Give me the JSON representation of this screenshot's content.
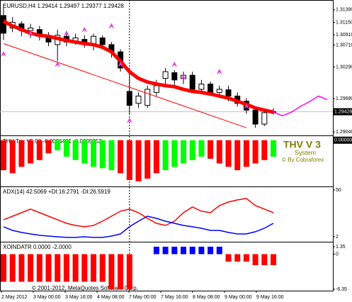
{
  "chart_data": [
    {
      "type": "candlestick",
      "title": "EURUSD,H4 1.29414 1.29497 1.29377 1.29428",
      "open": [
        1.3128,
        1.3104,
        1.3112,
        1.3099,
        1.3101,
        1.3088,
        1.3072,
        1.3088,
        1.3077,
        1.3082,
        1.3074,
        1.3085,
        1.3072,
        1.3058,
        1.2982,
        1.2959,
        1.2955,
        1.298,
        1.3007,
        1.3018,
        1.3007,
        1.3013,
        1.2986,
        1.2996,
        1.298,
        1.2985,
        1.2973,
        1.2963,
        1.2946,
        1.2919,
        1.29414
      ],
      "high": [
        1.3149,
        1.3125,
        1.3117,
        1.3112,
        1.3108,
        1.3096,
        1.3101,
        1.3094,
        1.3093,
        1.309,
        1.3093,
        1.309,
        1.3077,
        1.3063,
        1.302,
        1.298,
        1.2993,
        1.3004,
        1.3027,
        1.3023,
        1.302,
        1.302,
        1.3004,
        1.3001,
        1.2993,
        1.2993,
        1.298,
        1.2969,
        1.2953,
        1.2944,
        1.29497
      ],
      "low": [
        1.3081,
        1.3096,
        1.3088,
        1.3085,
        1.308,
        1.3069,
        1.304,
        1.3069,
        1.3072,
        1.3066,
        1.3061,
        1.3063,
        1.3047,
        1.302,
        1.2939,
        1.295,
        1.295,
        1.2973,
        1.2996,
        1.2993,
        1.2996,
        1.298,
        1.2977,
        1.2973,
        1.2969,
        1.2963,
        1.2953,
        1.2939,
        1.2912,
        1.2915,
        1.29377
      ],
      "close": [
        1.3094,
        1.3115,
        1.3099,
        1.3104,
        1.3088,
        1.3077,
        1.309,
        1.3077,
        1.3085,
        1.3074,
        1.3088,
        1.3072,
        1.3058,
        1.3027,
        1.2955,
        1.2973,
        1.2986,
        1.2993,
        1.302,
        1.3004,
        1.3013,
        1.2986,
        1.2996,
        1.298,
        1.2986,
        1.2973,
        1.2959,
        1.2946,
        1.2919,
        1.2941,
        1.29428
      ],
      "color_up": "#ffffff",
      "color_down": "#000000",
      "series": [
        {
          "color": "#ff0000",
          "values": [
            1.3117,
            1.3108,
            1.3101,
            1.3094,
            1.309,
            1.3088,
            1.3084,
            1.308,
            1.3077,
            1.3074,
            1.3072,
            1.3067,
            1.3058,
            1.304,
            1.302,
            1.3007,
            1.3,
            1.2996,
            1.2993,
            1.2991,
            1.2986,
            1.2982,
            1.298,
            1.2977,
            1.2973,
            1.2969,
            1.2963,
            1.2957,
            1.295,
            1.2946,
            1.2942
          ]
        }
      ],
      "trendline": {
        "color": "#ff0000",
        "x": [
          0,
          27
        ],
        "values": [
          1.3074,
          1.2912
        ]
      },
      "projection": {
        "color": "#ff00ff",
        "x": [
          30,
          31,
          32,
          33,
          34,
          35,
          36
        ],
        "values": [
          1.2942,
          1.2935,
          1.2942,
          1.2953,
          1.2962,
          1.2973,
          1.2966
        ]
      },
      "arrows": {
        "color": "#e040e0",
        "x": [
          0,
          3,
          6,
          7,
          9,
          12,
          13,
          14,
          19,
          20,
          24,
          27
        ],
        "values": [
          1.3054,
          1.3094,
          1.3034,
          1.3094,
          1.3101,
          1.3108,
          1.3034,
          1.2926,
          1.3034,
          1.3009,
          1.302,
          1.2953
        ]
      },
      "current": 1.29428,
      "ylim": [
        1.28986,
        1.31552
      ],
      "yticks": [
        {
          "value": 1.3139,
          "label": "1.31390"
        },
        {
          "value": 1.3115,
          "label": "1.31150"
        },
        {
          "value": 1.3091,
          "label": "1.30910"
        },
        {
          "value": 1.3071,
          "label": "1.30710"
        },
        {
          "value": 1.3029,
          "label": "1.30290"
        },
        {
          "value": 1.2968,
          "label": "1.29680"
        },
        {
          "value": 1.2904,
          "label": "1.29040"
        }
      ]
    },
    {
      "type": "bar",
      "title": "THV Trix V5:00 -0.0006481 -0.0005852",
      "annotations": [
        "THV V 3",
        "System",
        "© By Cobraforex"
      ],
      "series": [
        {
          "color": "#ff0000",
          "values": [
            -0.00089,
            -0.00098,
            -0.00079,
            -0.00069,
            -0.00059,
            -0.00039,
            null,
            null,
            null,
            null,
            null,
            null,
            null,
            -0.00098,
            -0.00118,
            -0.00122,
            -0.00114,
            -0.00098,
            null,
            null,
            null,
            null,
            null,
            -0.00055,
            -0.00069,
            -0.00079,
            -0.00089,
            -0.00079,
            -0.00069,
            -0.00059,
            null
          ]
        },
        {
          "color": "#00ff00",
          "values": [
            null,
            null,
            null,
            null,
            null,
            null,
            -0.0003,
            -0.00049,
            -0.00059,
            -0.00069,
            -0.00079,
            -0.00083,
            -0.00089,
            null,
            null,
            null,
            null,
            null,
            -0.00089,
            -0.00079,
            -0.00069,
            -0.00059,
            -0.00049,
            null,
            null,
            null,
            null,
            null,
            null,
            null,
            -0.00049
          ]
        }
      ],
      "ylim": [
        -0.00135,
        0.0001
      ],
      "yticks": [
        {
          "value": 0,
          "label": "0.00000"
        }
      ]
    },
    {
      "type": "line",
      "title": "ADX(14) 42.5069 +DI:16.2791 -DI:26.5919",
      "series": [
        {
          "color": "#ff0000",
          "values": [
            19.5,
            23.1,
            26.7,
            30.4,
            26.7,
            23.1,
            19.5,
            15.8,
            13.6,
            12.2,
            13.6,
            18,
            23.1,
            28.2,
            30.4,
            26.7,
            20.9,
            15.8,
            13.6,
            18,
            26.7,
            32.5,
            28.2,
            26.7,
            34,
            37.6,
            39.8,
            41.3,
            34,
            30.4,
            26.7
          ]
        },
        {
          "color": "#0000ff",
          "values": [
            12.2,
            8.5,
            6.4,
            4.9,
            3.5,
            2.7,
            2,
            1.3,
            1.3,
            2,
            1.3,
            1.3,
            2.7,
            4.9,
            12.2,
            18,
            23.1,
            20.9,
            18,
            15.8,
            13.6,
            12.2,
            10.7,
            8.5,
            8.5,
            6.4,
            4.9,
            4.9,
            7.1,
            10.7,
            15.8
          ]
        }
      ],
      "ylim": [
        -2.4,
        52.9
      ],
      "yticks": [
        50,
        2
      ]
    },
    {
      "type": "bar",
      "title": "XOINDATR 0.0000 -2.0000",
      "series": [
        {
          "color": "#ff0000",
          "values": [
            -5,
            -5,
            -5,
            -5,
            -5,
            -5,
            -5,
            -5,
            -5,
            -5,
            -5,
            -5,
            -6.35,
            -6.35,
            -6.35,
            null,
            null,
            null,
            null,
            null,
            null,
            null,
            null,
            null,
            null,
            -1.35,
            -1.35,
            -1.35,
            -2,
            -2,
            -2
          ]
        },
        {
          "color": "#0000ff",
          "values": [
            null,
            null,
            null,
            null,
            null,
            null,
            null,
            null,
            null,
            null,
            null,
            null,
            null,
            null,
            null,
            null,
            null,
            1.35,
            1.35,
            1.35,
            1.35,
            1.35,
            1.35,
            1.35,
            1.35,
            null,
            null,
            null,
            null,
            null,
            null
          ]
        }
      ],
      "ylim": [
        -6.61,
        2.12
      ],
      "yticks": [
        1.35,
        0,
        -6.35
      ]
    }
  ],
  "footer": {
    "dates": [
      "2 May 2012",
      "3 May 00:00",
      "3 May 16:00",
      "4 May 08:00",
      "7 May 00:00",
      "7 May 16:00",
      "8 May 08:00",
      "9 May 00:00",
      "9 May 16:00"
    ],
    "copyright": "© 2001-2012, MetaQuotes Software Corp."
  }
}
